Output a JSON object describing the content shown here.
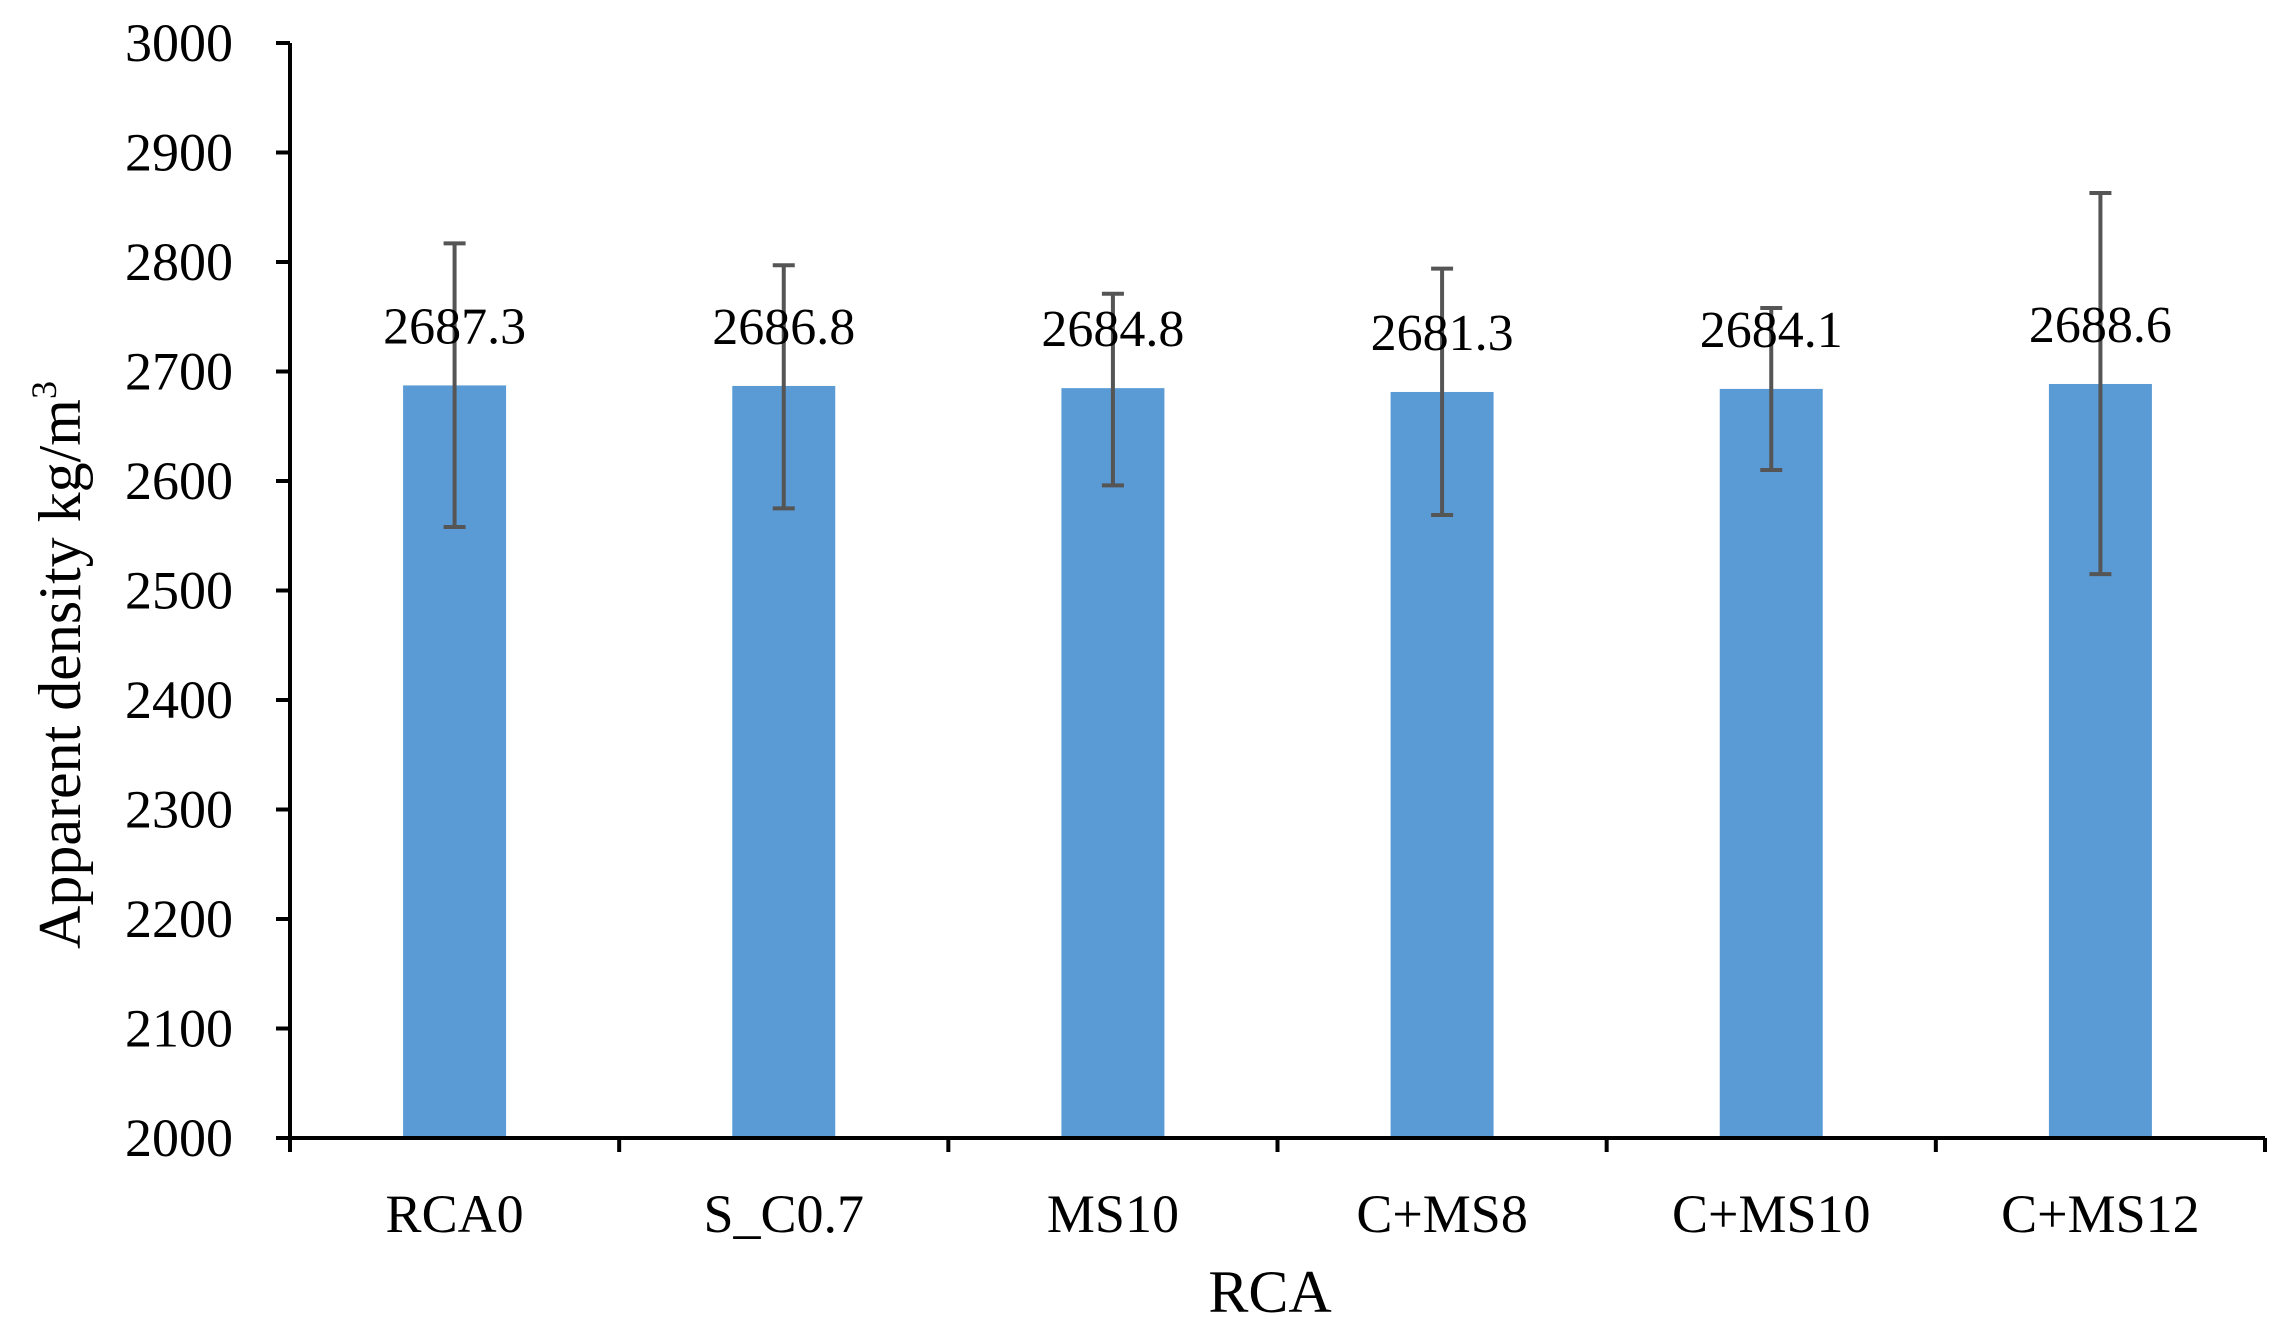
{
  "chart_data": {
    "type": "bar",
    "categories": [
      "RCA0",
      "S_C0.7",
      "MS10",
      "C+MS8",
      "C+MS10",
      "C+MS12"
    ],
    "values": [
      2687.3,
      2686.8,
      2684.8,
      2681.3,
      2684.1,
      2688.6
    ],
    "value_labels": [
      "2687.3",
      "2686.8",
      "2684.8",
      "2681.3",
      "2684.1",
      "2688.6"
    ],
    "error_high": [
      2817,
      2797,
      2771,
      2794,
      2758,
      2863
    ],
    "error_low": [
      2558,
      2575,
      2596,
      2569,
      2610,
      2515
    ],
    "xlabel": "RCA",
    "ylabel_main": "Apparent  density kg/m",
    "ylabel_sup": "3",
    "ylim": [
      2000,
      3000
    ],
    "yticks": [
      2000,
      2100,
      2200,
      2300,
      2400,
      2500,
      2600,
      2700,
      2800,
      2900,
      3000
    ],
    "grid": false,
    "legend": "none",
    "colors": {
      "bar": "#5B9BD5",
      "error_bar": "#555555",
      "axis": "#000000"
    }
  }
}
